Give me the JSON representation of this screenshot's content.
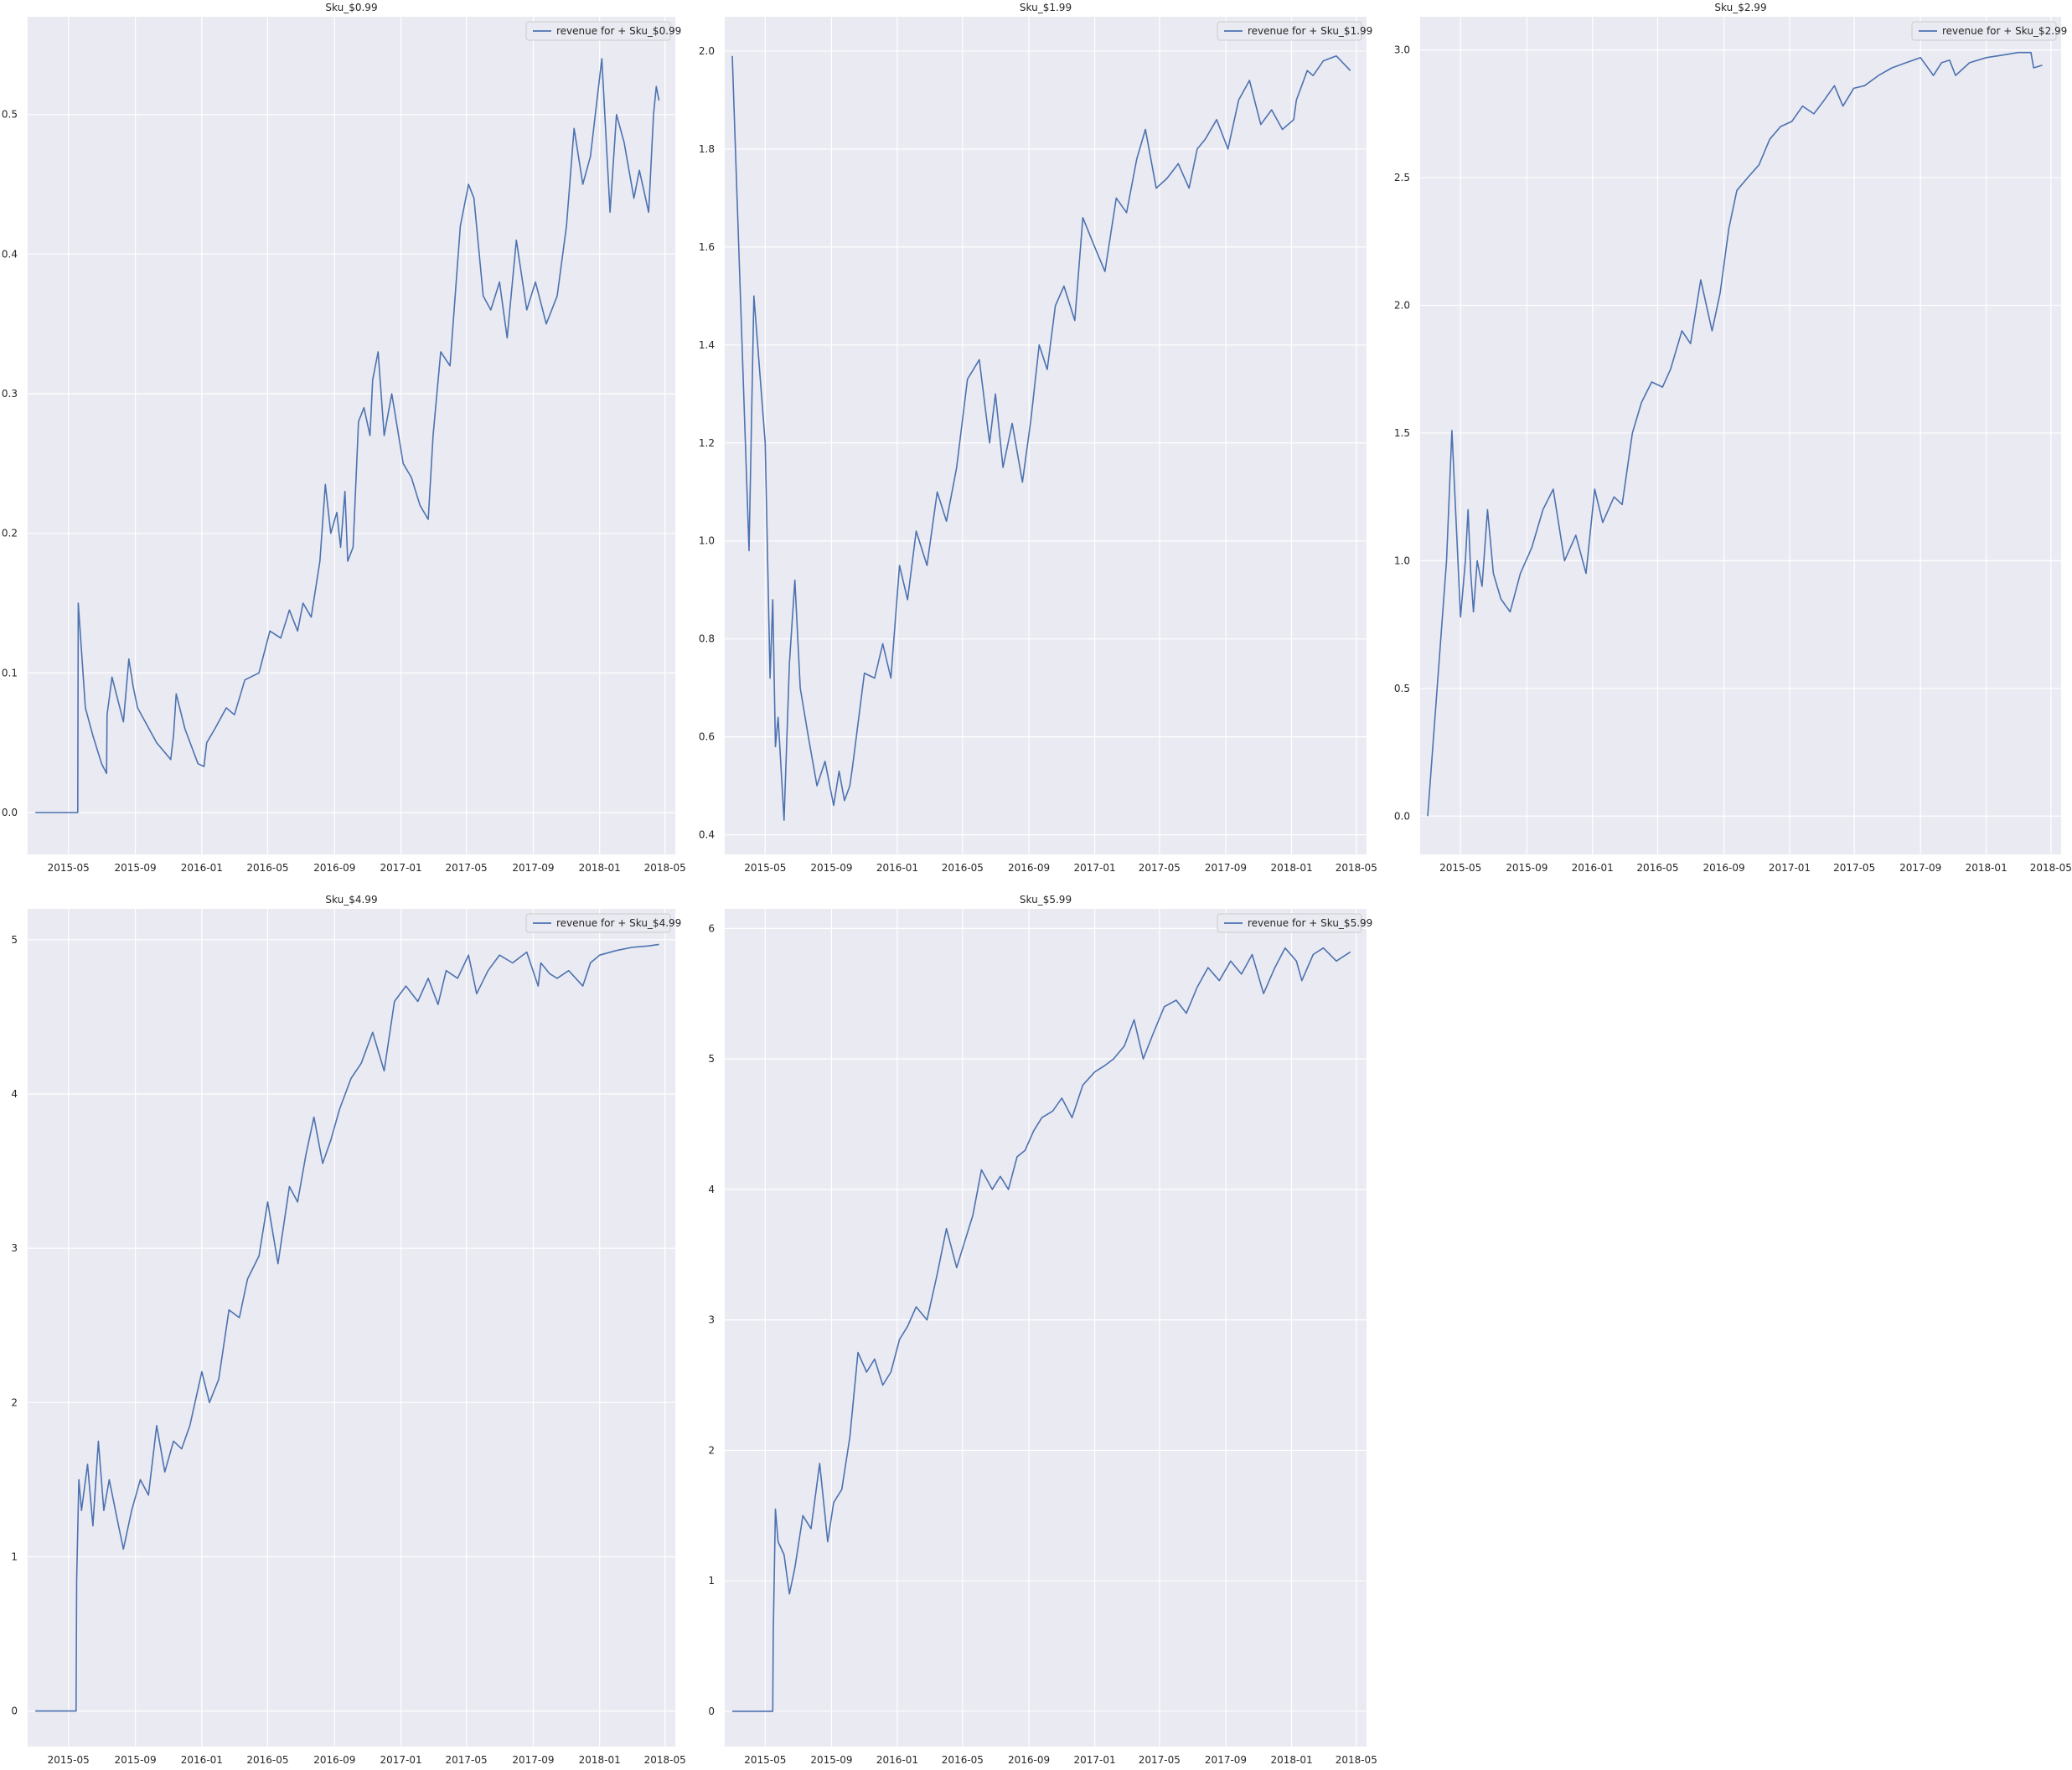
{
  "chart_data": [
    {
      "type": "line",
      "title": "Sku_$0.99",
      "xlabel": "",
      "ylabel": "",
      "legend_location": "top-right",
      "grid": true,
      "xlim": [
        "2015-02-15",
        "2018-05-20"
      ],
      "ylim": [
        -0.03,
        0.57
      ],
      "xticks": [
        "2015-05",
        "2015-09",
        "2016-01",
        "2016-05",
        "2016-09",
        "2017-01",
        "2017-05",
        "2017-09",
        "2018-01",
        "2018-05"
      ],
      "yticks": [
        0.0,
        0.1,
        0.2,
        0.3,
        0.4,
        0.5
      ],
      "ytick_labels": [
        "0.0",
        "0.1",
        "0.2",
        "0.3",
        "0.4",
        "0.5"
      ],
      "series": [
        {
          "name": "revenue for + Sku_$0.99",
          "color": "#4c72b0",
          "x": [
            "2015-03-01",
            "2015-05-18",
            "2015-05-19",
            "2015-06-01",
            "2015-06-15",
            "2015-07-01",
            "2015-07-10",
            "2015-07-11",
            "2015-07-20",
            "2015-08-10",
            "2015-08-20",
            "2015-08-28",
            "2015-09-05",
            "2015-10-10",
            "2015-11-05",
            "2015-11-10",
            "2015-11-15",
            "2015-12-01",
            "2015-12-25",
            "2016-01-05",
            "2016-01-10",
            "2016-01-25",
            "2016-02-15",
            "2016-03-01",
            "2016-03-20",
            "2016-04-15",
            "2016-05-05",
            "2016-05-25",
            "2016-06-10",
            "2016-06-25",
            "2016-07-05",
            "2016-07-20",
            "2016-08-05",
            "2016-08-15",
            "2016-08-25",
            "2016-09-05",
            "2016-09-12",
            "2016-09-20",
            "2016-09-25",
            "2016-10-05",
            "2016-10-15",
            "2016-10-25",
            "2016-11-05",
            "2016-11-10",
            "2016-11-20",
            "2016-12-01",
            "2016-12-15",
            "2017-01-05",
            "2017-01-20",
            "2017-02-05",
            "2017-02-20",
            "2017-03-01",
            "2017-03-15",
            "2017-04-01",
            "2017-04-20",
            "2017-05-05",
            "2017-05-15",
            "2017-06-01",
            "2017-06-15",
            "2017-07-01",
            "2017-07-15",
            "2017-08-01",
            "2017-08-20",
            "2017-09-05",
            "2017-09-25",
            "2017-10-15",
            "2017-11-01",
            "2017-11-15",
            "2017-12-01",
            "2017-12-15",
            "2018-01-05",
            "2018-01-20",
            "2018-02-01",
            "2018-02-15",
            "2018-03-05",
            "2018-03-15",
            "2018-04-01",
            "2018-04-10",
            "2018-04-15",
            "2018-04-20"
          ],
          "y": [
            0.0,
            0.0,
            0.15,
            0.075,
            0.055,
            0.035,
            0.028,
            0.07,
            0.097,
            0.065,
            0.11,
            0.09,
            0.075,
            0.05,
            0.038,
            0.055,
            0.085,
            0.06,
            0.035,
            0.033,
            0.05,
            0.06,
            0.075,
            0.07,
            0.095,
            0.1,
            0.13,
            0.125,
            0.145,
            0.13,
            0.15,
            0.14,
            0.18,
            0.235,
            0.2,
            0.215,
            0.19,
            0.23,
            0.18,
            0.19,
            0.28,
            0.29,
            0.27,
            0.31,
            0.33,
            0.27,
            0.3,
            0.25,
            0.24,
            0.22,
            0.21,
            0.27,
            0.33,
            0.32,
            0.42,
            0.45,
            0.44,
            0.37,
            0.36,
            0.38,
            0.34,
            0.41,
            0.36,
            0.38,
            0.35,
            0.37,
            0.42,
            0.49,
            0.45,
            0.47,
            0.54,
            0.43,
            0.5,
            0.48,
            0.44,
            0.46,
            0.43,
            0.5,
            0.52,
            0.51
          ]
        }
      ]
    },
    {
      "type": "line",
      "title": "Sku_$1.99",
      "xlabel": "",
      "ylabel": "",
      "legend_location": "top-right",
      "grid": true,
      "xlim": [
        "2015-02-15",
        "2018-05-20"
      ],
      "ylim": [
        0.36,
        2.07
      ],
      "xticks": [
        "2015-05",
        "2015-09",
        "2016-01",
        "2016-05",
        "2016-09",
        "2017-01",
        "2017-05",
        "2017-09",
        "2018-01",
        "2018-05"
      ],
      "yticks": [
        0.4,
        0.6,
        0.8,
        1.0,
        1.2,
        1.4,
        1.6,
        1.8,
        2.0
      ],
      "ytick_labels": [
        "0.4",
        "0.6",
        "0.8",
        "1.0",
        "1.2",
        "1.4",
        "1.6",
        "1.8",
        "2.0"
      ],
      "series": [
        {
          "name": "revenue for + Sku_$1.99",
          "color": "#4c72b0",
          "x": [
            "2015-03-01",
            "2015-04-01",
            "2015-04-10",
            "2015-05-01",
            "2015-05-10",
            "2015-05-15",
            "2015-05-20",
            "2015-05-25",
            "2015-06-05",
            "2015-06-15",
            "2015-06-25",
            "2015-07-05",
            "2015-07-20",
            "2015-08-05",
            "2015-08-20",
            "2015-09-05",
            "2015-09-15",
            "2015-09-25",
            "2015-10-05",
            "2015-10-10",
            "2015-11-01",
            "2015-11-20",
            "2015-12-05",
            "2015-12-20",
            "2016-01-05",
            "2016-01-20",
            "2016-02-05",
            "2016-02-25",
            "2016-03-15",
            "2016-04-01",
            "2016-04-20",
            "2016-05-10",
            "2016-06-01",
            "2016-06-20",
            "2016-07-01",
            "2016-07-15",
            "2016-08-01",
            "2016-08-20",
            "2016-09-05",
            "2016-09-20",
            "2016-10-05",
            "2016-10-20",
            "2016-11-05",
            "2016-11-25",
            "2016-12-10",
            "2017-01-01",
            "2017-01-20",
            "2017-02-10",
            "2017-03-01",
            "2017-03-20",
            "2017-04-05",
            "2017-04-25",
            "2017-05-15",
            "2017-06-05",
            "2017-06-25",
            "2017-07-10",
            "2017-07-25",
            "2017-08-15",
            "2017-09-05",
            "2017-09-25",
            "2017-10-15",
            "2017-11-05",
            "2017-11-25",
            "2017-12-15",
            "2018-01-05",
            "2018-01-10",
            "2018-01-20",
            "2018-01-30",
            "2018-02-10",
            "2018-03-01",
            "2018-03-25",
            "2018-04-20"
          ],
          "y": [
            1.99,
            0.98,
            1.5,
            1.2,
            0.72,
            0.88,
            0.58,
            0.64,
            0.43,
            0.75,
            0.92,
            0.7,
            0.6,
            0.5,
            0.55,
            0.46,
            0.53,
            0.47,
            0.5,
            0.54,
            0.73,
            0.72,
            0.79,
            0.72,
            0.95,
            0.88,
            1.02,
            0.95,
            1.1,
            1.04,
            1.15,
            1.33,
            1.37,
            1.2,
            1.3,
            1.15,
            1.24,
            1.12,
            1.25,
            1.4,
            1.35,
            1.48,
            1.52,
            1.45,
            1.66,
            1.6,
            1.55,
            1.7,
            1.67,
            1.78,
            1.84,
            1.72,
            1.74,
            1.77,
            1.72,
            1.8,
            1.82,
            1.86,
            1.8,
            1.9,
            1.94,
            1.85,
            1.88,
            1.84,
            1.86,
            1.9,
            1.93,
            1.96,
            1.95,
            1.98,
            1.99,
            1.96
          ]
        }
      ]
    },
    {
      "type": "line",
      "title": "Sku_$2.99",
      "xlabel": "",
      "ylabel": "",
      "legend_location": "top-right",
      "grid": true,
      "xlim": [
        "2015-02-15",
        "2018-05-20"
      ],
      "ylim": [
        -0.15,
        3.13
      ],
      "xticks": [
        "2015-05",
        "2015-09",
        "2016-01",
        "2016-05",
        "2016-09",
        "2017-01",
        "2017-05",
        "2017-09",
        "2018-01",
        "2018-05"
      ],
      "yticks": [
        0.0,
        0.5,
        1.0,
        1.5,
        2.0,
        2.5,
        3.0
      ],
      "ytick_labels": [
        "0.0",
        "0.5",
        "1.0",
        "1.5",
        "2.0",
        "2.5",
        "3.0"
      ],
      "series": [
        {
          "name": "revenue for + Sku_$2.99",
          "color": "#4c72b0",
          "x": [
            "2015-03-01",
            "2015-04-05",
            "2015-04-15",
            "2015-05-01",
            "2015-05-10",
            "2015-05-15",
            "2015-05-20",
            "2015-05-25",
            "2015-06-01",
            "2015-06-10",
            "2015-06-20",
            "2015-07-01",
            "2015-07-15",
            "2015-08-01",
            "2015-08-20",
            "2015-09-10",
            "2015-10-01",
            "2015-10-20",
            "2015-11-10",
            "2015-12-01",
            "2015-12-20",
            "2016-01-05",
            "2016-01-20",
            "2016-02-10",
            "2016-02-25",
            "2016-03-15",
            "2016-04-01",
            "2016-04-20",
            "2016-05-10",
            "2016-05-25",
            "2016-06-15",
            "2016-07-01",
            "2016-07-20",
            "2016-08-10",
            "2016-08-25",
            "2016-09-10",
            "2016-09-25",
            "2016-10-15",
            "2016-11-05",
            "2016-11-25",
            "2016-12-15",
            "2017-01-05",
            "2017-01-25",
            "2017-02-15",
            "2017-03-05",
            "2017-03-25",
            "2017-04-10",
            "2017-04-30",
            "2017-05-20",
            "2017-06-15",
            "2017-07-10",
            "2017-08-05",
            "2017-09-01",
            "2017-09-25",
            "2017-10-10",
            "2017-10-25",
            "2017-11-05",
            "2017-12-01",
            "2018-01-01",
            "2018-02-01",
            "2018-03-01",
            "2018-03-25",
            "2018-03-30",
            "2018-04-15"
          ],
          "y": [
            0.0,
            1.0,
            1.51,
            0.78,
            1.0,
            1.2,
            0.95,
            0.8,
            1.0,
            0.9,
            1.2,
            0.95,
            0.85,
            0.8,
            0.95,
            1.05,
            1.2,
            1.28,
            1.0,
            1.1,
            0.95,
            1.28,
            1.15,
            1.25,
            1.22,
            1.5,
            1.62,
            1.7,
            1.68,
            1.75,
            1.9,
            1.85,
            2.1,
            1.9,
            2.05,
            2.3,
            2.45,
            2.5,
            2.55,
            2.65,
            2.7,
            2.72,
            2.78,
            2.75,
            2.8,
            2.86,
            2.78,
            2.85,
            2.86,
            2.9,
            2.93,
            2.95,
            2.97,
            2.9,
            2.95,
            2.96,
            2.9,
            2.95,
            2.97,
            2.98,
            2.99,
            2.99,
            2.93,
            2.94
          ]
        }
      ]
    },
    {
      "type": "line",
      "title": "Sku_$4.99",
      "xlabel": "",
      "ylabel": "",
      "legend_location": "top-right",
      "grid": true,
      "xlim": [
        "2015-02-15",
        "2018-05-20"
      ],
      "ylim": [
        -0.23,
        5.2
      ],
      "xticks": [
        "2015-05",
        "2015-09",
        "2016-01",
        "2016-05",
        "2016-09",
        "2017-01",
        "2017-05",
        "2017-09",
        "2018-01",
        "2018-05"
      ],
      "yticks": [
        0,
        1,
        2,
        3,
        4,
        5
      ],
      "ytick_labels": [
        "0",
        "1",
        "2",
        "3",
        "4",
        "5"
      ],
      "series": [
        {
          "name": "revenue for + Sku_$4.99",
          "color": "#4c72b0",
          "x": [
            "2015-03-01",
            "2015-05-15",
            "2015-05-16",
            "2015-05-20",
            "2015-05-25",
            "2015-06-05",
            "2015-06-15",
            "2015-06-25",
            "2015-07-05",
            "2015-07-15",
            "2015-08-01",
            "2015-08-10",
            "2015-08-25",
            "2015-09-10",
            "2015-09-25",
            "2015-10-10",
            "2015-10-25",
            "2015-11-10",
            "2015-11-25",
            "2015-12-10",
            "2016-01-01",
            "2016-01-15",
            "2016-02-01",
            "2016-02-20",
            "2016-03-10",
            "2016-03-25",
            "2016-04-15",
            "2016-05-01",
            "2016-05-20",
            "2016-06-10",
            "2016-06-25",
            "2016-07-10",
            "2016-07-25",
            "2016-08-10",
            "2016-08-25",
            "2016-09-10",
            "2016-10-01",
            "2016-10-20",
            "2016-11-10",
            "2016-12-01",
            "2016-12-20",
            "2017-01-10",
            "2017-02-01",
            "2017-02-20",
            "2017-03-10",
            "2017-03-25",
            "2017-04-15",
            "2017-05-05",
            "2017-05-20",
            "2017-06-10",
            "2017-07-01",
            "2017-07-25",
            "2017-08-20",
            "2017-09-10",
            "2017-09-15",
            "2017-10-01",
            "2017-10-15",
            "2017-11-05",
            "2017-12-01",
            "2017-12-15",
            "2018-01-01",
            "2018-02-01",
            "2018-03-01",
            "2018-04-01",
            "2018-04-20"
          ],
          "y": [
            0.0,
            0.0,
            0.85,
            1.5,
            1.3,
            1.6,
            1.2,
            1.75,
            1.3,
            1.5,
            1.2,
            1.05,
            1.3,
            1.5,
            1.4,
            1.85,
            1.55,
            1.75,
            1.7,
            1.85,
            2.2,
            2.0,
            2.15,
            2.6,
            2.55,
            2.8,
            2.95,
            3.3,
            2.9,
            3.4,
            3.3,
            3.6,
            3.85,
            3.55,
            3.7,
            3.9,
            4.1,
            4.2,
            4.4,
            4.15,
            4.6,
            4.7,
            4.6,
            4.75,
            4.58,
            4.8,
            4.75,
            4.9,
            4.65,
            4.8,
            4.9,
            4.85,
            4.92,
            4.7,
            4.85,
            4.78,
            4.75,
            4.8,
            4.7,
            4.85,
            4.9,
            4.93,
            4.95,
            4.96,
            4.97
          ]
        }
      ]
    },
    {
      "type": "line",
      "title": "Sku_$5.99",
      "xlabel": "",
      "ylabel": "",
      "legend_location": "top-right",
      "grid": true,
      "xlim": [
        "2015-02-15",
        "2018-05-20"
      ],
      "ylim": [
        -0.27,
        6.15
      ],
      "xticks": [
        "2015-05",
        "2015-09",
        "2016-01",
        "2016-05",
        "2016-09",
        "2017-01",
        "2017-05",
        "2017-09",
        "2018-01",
        "2018-05"
      ],
      "yticks": [
        0,
        1,
        2,
        3,
        4,
        5,
        6
      ],
      "ytick_labels": [
        "0",
        "1",
        "2",
        "3",
        "4",
        "5",
        "6"
      ],
      "series": [
        {
          "name": "revenue for + Sku_$5.99",
          "color": "#4c72b0",
          "x": [
            "2015-03-01",
            "2015-05-15",
            "2015-05-16",
            "2015-05-20",
            "2015-05-25",
            "2015-06-05",
            "2015-06-15",
            "2015-06-25",
            "2015-07-10",
            "2015-07-25",
            "2015-08-10",
            "2015-08-25",
            "2015-09-05",
            "2015-09-20",
            "2015-10-05",
            "2015-10-20",
            "2015-11-05",
            "2015-11-20",
            "2015-12-05",
            "2015-12-20",
            "2016-01-05",
            "2016-01-20",
            "2016-02-05",
            "2016-02-25",
            "2016-03-15",
            "2016-04-01",
            "2016-04-20",
            "2016-05-05",
            "2016-05-20",
            "2016-06-05",
            "2016-06-25",
            "2016-07-10",
            "2016-07-25",
            "2016-08-10",
            "2016-08-25",
            "2016-09-10",
            "2016-09-25",
            "2016-10-15",
            "2016-11-01",
            "2016-11-20",
            "2016-12-10",
            "2017-01-01",
            "2017-01-20",
            "2017-02-05",
            "2017-02-25",
            "2017-03-15",
            "2017-04-01",
            "2017-04-20",
            "2017-05-10",
            "2017-06-01",
            "2017-06-20",
            "2017-07-10",
            "2017-07-30",
            "2017-08-20",
            "2017-09-10",
            "2017-09-30",
            "2017-10-20",
            "2017-11-10",
            "2017-12-01",
            "2017-12-20",
            "2018-01-10",
            "2018-01-20",
            "2018-02-10",
            "2018-03-01",
            "2018-03-25",
            "2018-04-20"
          ],
          "y": [
            0.0,
            0.0,
            0.6,
            1.55,
            1.3,
            1.2,
            0.9,
            1.1,
            1.5,
            1.4,
            1.9,
            1.3,
            1.6,
            1.7,
            2.1,
            2.75,
            2.6,
            2.7,
            2.5,
            2.6,
            2.85,
            2.95,
            3.1,
            3.0,
            3.35,
            3.7,
            3.4,
            3.6,
            3.8,
            4.15,
            4.0,
            4.1,
            4.0,
            4.25,
            4.3,
            4.45,
            4.55,
            4.6,
            4.7,
            4.55,
            4.8,
            4.9,
            4.95,
            5.0,
            5.1,
            5.3,
            5.0,
            5.2,
            5.4,
            5.45,
            5.35,
            5.55,
            5.7,
            5.6,
            5.75,
            5.65,
            5.8,
            5.5,
            5.7,
            5.85,
            5.75,
            5.6,
            5.8,
            5.85,
            5.75,
            5.82
          ]
        }
      ]
    }
  ]
}
